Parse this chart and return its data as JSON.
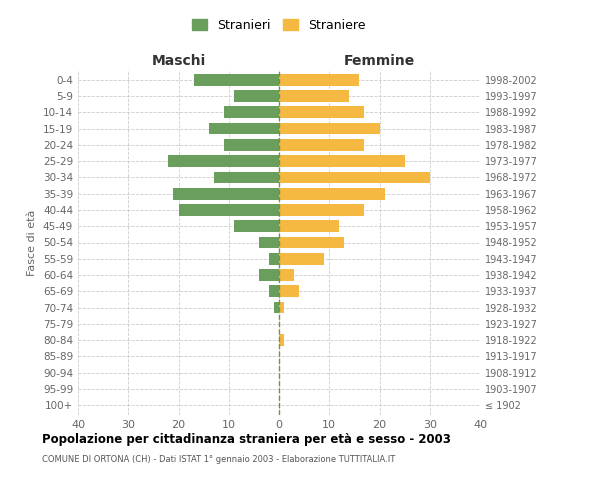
{
  "age_groups": [
    "100+",
    "95-99",
    "90-94",
    "85-89",
    "80-84",
    "75-79",
    "70-74",
    "65-69",
    "60-64",
    "55-59",
    "50-54",
    "45-49",
    "40-44",
    "35-39",
    "30-34",
    "25-29",
    "20-24",
    "15-19",
    "10-14",
    "5-9",
    "0-4"
  ],
  "birth_years": [
    "≤ 1902",
    "1903-1907",
    "1908-1912",
    "1913-1917",
    "1918-1922",
    "1923-1927",
    "1928-1932",
    "1933-1937",
    "1938-1942",
    "1943-1947",
    "1948-1952",
    "1953-1957",
    "1958-1962",
    "1963-1967",
    "1968-1972",
    "1973-1977",
    "1978-1982",
    "1983-1987",
    "1988-1992",
    "1993-1997",
    "1998-2002"
  ],
  "maschi": [
    0,
    0,
    0,
    0,
    0,
    0,
    1,
    2,
    4,
    2,
    4,
    9,
    20,
    21,
    13,
    22,
    11,
    14,
    11,
    9,
    17
  ],
  "femmine": [
    0,
    0,
    0,
    0,
    1,
    0,
    1,
    4,
    3,
    9,
    13,
    12,
    17,
    21,
    30,
    25,
    17,
    20,
    17,
    14,
    16
  ],
  "maschi_color": "#6a9e5c",
  "femmine_color": "#f5b942",
  "bar_height": 0.72,
  "xlim": 40,
  "title": "Popolazione per cittadinanza straniera per età e sesso - 2003",
  "subtitle": "COMUNE DI ORTONA (CH) - Dati ISTAT 1° gennaio 2003 - Elaborazione TUTTITALIA.IT",
  "ylabel_left": "Fasce di età",
  "xlabel_maschi": "Maschi",
  "xlabel_femmine": "Femmine",
  "legend_stranieri": "Stranieri",
  "legend_straniere": "Straniere",
  "background_color": "#ffffff",
  "grid_color": "#cccccc",
  "tick_label_color": "#666666",
  "title_color": "#000000",
  "subtitle_color": "#555555"
}
